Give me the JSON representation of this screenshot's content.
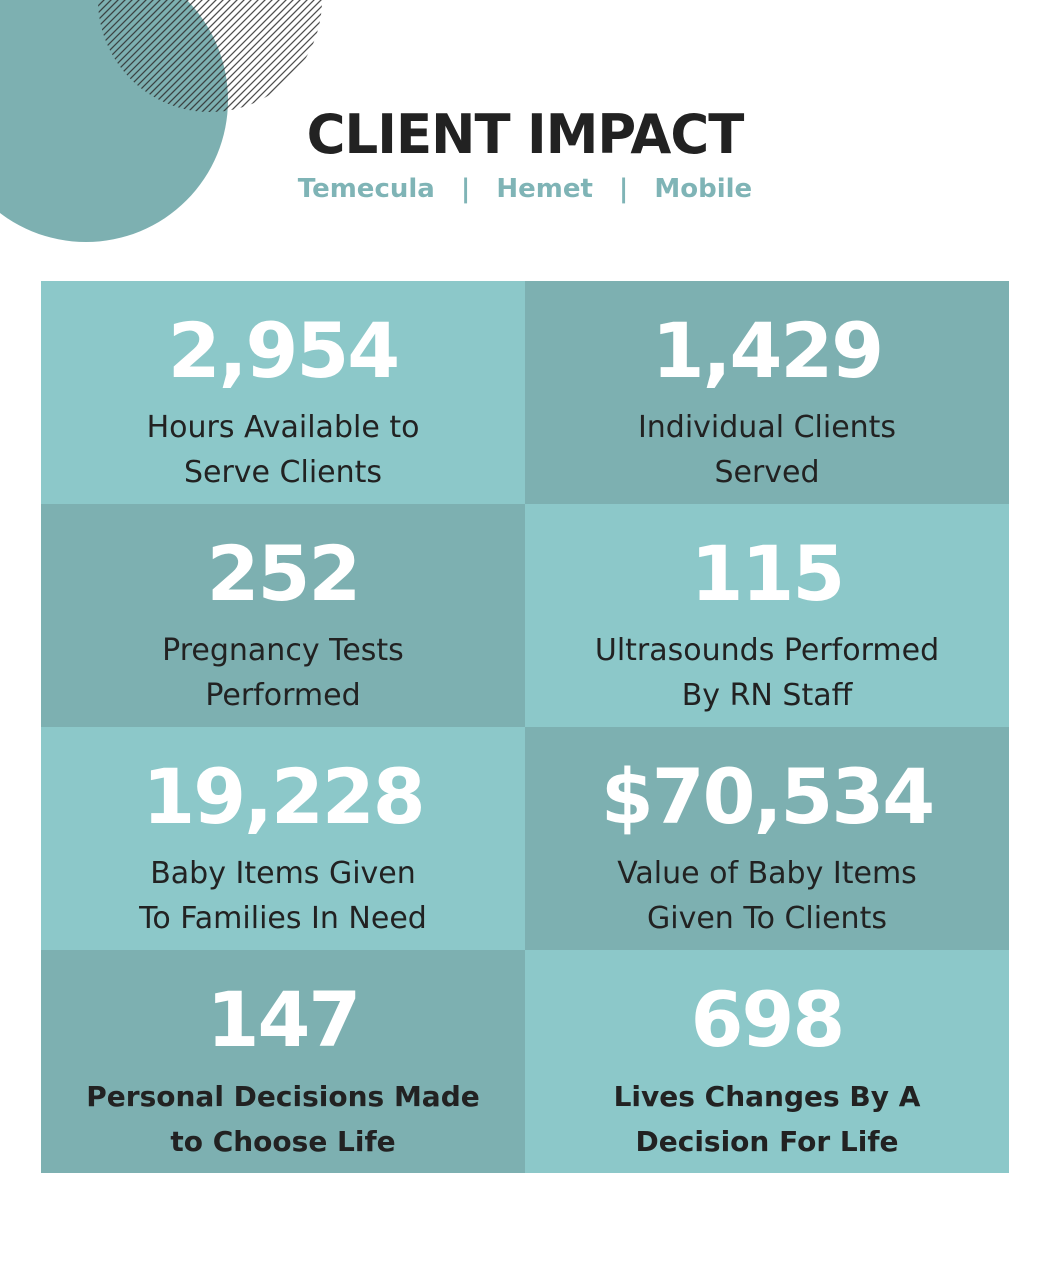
{
  "header": {
    "title": "CLIENT IMPACT",
    "locations": [
      "Temecula",
      "Hemet",
      "Mobile"
    ],
    "separator": "|"
  },
  "stats": [
    {
      "value": "2,954",
      "line1": "Hours Available to",
      "line2": "Serve Clients"
    },
    {
      "value": "1,429",
      "line1": "Individual Clients",
      "line2": "Served"
    },
    {
      "value": "252",
      "line1": "Pregnancy Tests",
      "line2": "Performed"
    },
    {
      "value": "115",
      "line1": "Ultrasounds Performed",
      "line2": "By RN Staff"
    },
    {
      "value": "19,228",
      "line1": "Baby Items Given",
      "line2": "To Families In Need"
    },
    {
      "value": "$70,534",
      "line1": "Value of Baby Items",
      "line2": "Given To Clients"
    },
    {
      "value": "147",
      "line1": "Personal Decisions Made",
      "line2": "to Choose Life"
    },
    {
      "value": "698",
      "line1": "Lives Changes By A",
      "line2": "Decision For Life"
    }
  ],
  "colors": {
    "tile_light": "#8cc8c9",
    "tile_dark": "#7db0b1",
    "accent": "#7fb4b6",
    "title": "#222222",
    "number": "#ffffff"
  }
}
